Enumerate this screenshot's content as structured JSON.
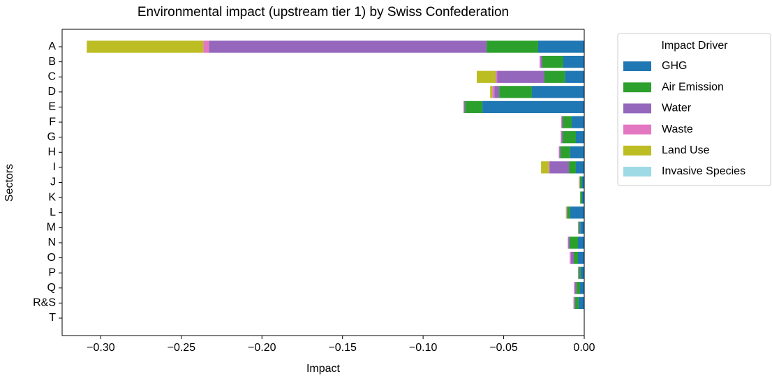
{
  "chart_data": {
    "type": "barh_stacked",
    "title": "Environmental impact (upstream tier 1) by Swiss Confederation",
    "x_label": "Impact",
    "y_label": "Sectors",
    "legend_title": "Impact Driver",
    "legend_position": "outside-right",
    "categories": [
      "A",
      "B",
      "C",
      "D",
      "E",
      "F",
      "G",
      "H",
      "I",
      "J",
      "K",
      "L",
      "M",
      "N",
      "O",
      "P",
      "Q",
      "R&S",
      "T"
    ],
    "series": [
      {
        "name": "GHG",
        "color": "#1f77b4",
        "values": [
          -0.0286,
          -0.013,
          -0.012,
          -0.0325,
          -0.0632,
          -0.0078,
          -0.0052,
          -0.0087,
          -0.0052,
          -0.0015,
          -0.0013,
          -0.0087,
          -0.0025,
          -0.0039,
          -0.0039,
          -0.0022,
          -0.0026,
          -0.0035,
          0
        ]
      },
      {
        "name": "Air Emission",
        "color": "#2ca02c",
        "values": [
          -0.032,
          -0.013,
          -0.0127,
          -0.0203,
          -0.0108,
          -0.0056,
          -0.0082,
          -0.006,
          -0.0043,
          -0.0012,
          -0.0012,
          -0.0018,
          -0.0008,
          -0.0052,
          -0.0026,
          -0.0012,
          -0.0022,
          -0.0022,
          0
        ]
      },
      {
        "name": "Water",
        "color": "#9467bd",
        "values": [
          -0.1723,
          -0.0012,
          -0.0294,
          -0.003,
          -0.0006,
          -0.0006,
          -0.0008,
          -0.0008,
          -0.0121,
          -0.0002,
          0,
          -0.0004,
          -0.0005,
          -0.0008,
          -0.0018,
          -0.0004,
          -0.0012,
          -0.0007,
          0
        ]
      },
      {
        "name": "Waste",
        "color": "#e377c2",
        "values": [
          -0.0035,
          -0.0005,
          -0.0009,
          -0.0013,
          -0.0004,
          -0.0004,
          -0.0004,
          -0.0003,
          -0.0004,
          -0.0001,
          0,
          -0.0002,
          0,
          -0.0003,
          -0.0007,
          0,
          -0.0003,
          -0.0003,
          0
        ]
      },
      {
        "name": "Land Use",
        "color": "#bcbd22",
        "values": [
          -0.0723,
          0,
          -0.0117,
          -0.0013,
          0,
          0,
          0,
          0,
          -0.0048,
          -0.0003,
          0,
          -0.0003,
          0,
          0,
          0,
          0,
          0,
          0,
          0
        ]
      },
      {
        "name": "Invasive Species",
        "color": "#9edae5",
        "values": [
          0,
          0,
          0,
          0,
          0,
          0,
          0,
          0,
          0,
          0,
          0,
          0,
          0,
          0,
          0,
          0,
          0,
          0,
          0
        ]
      }
    ],
    "xlim": [
      -0.324,
      0
    ],
    "xticks": [
      {
        "value": -0.3,
        "label": "−0.30"
      },
      {
        "value": -0.25,
        "label": "−0.25"
      },
      {
        "value": -0.2,
        "label": "−0.20"
      },
      {
        "value": -0.15,
        "label": "−0.15"
      },
      {
        "value": -0.1,
        "label": "−0.10"
      },
      {
        "value": -0.05,
        "label": "−0.05"
      },
      {
        "value": 0,
        "label": "0.00"
      }
    ],
    "grid": false
  }
}
